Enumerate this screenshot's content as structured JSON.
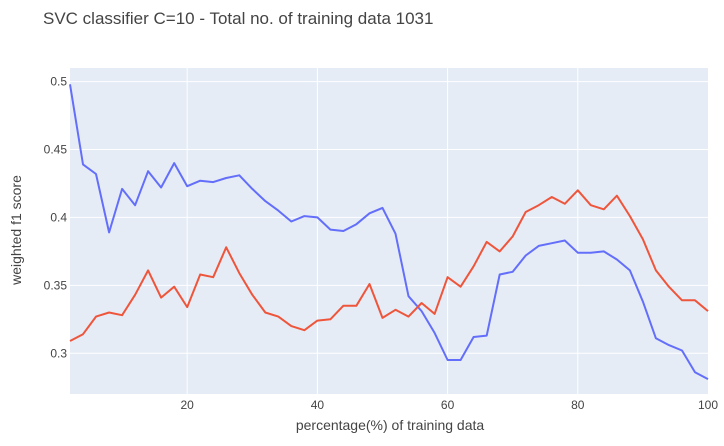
{
  "chart_data": {
    "type": "line",
    "title": "SVC classifier C=10 - Total no. of training data 1031",
    "xlabel": "percentage(%) of training data",
    "ylabel": "weighted f1 score",
    "xlim": [
      2,
      100
    ],
    "ylim": [
      0.27,
      0.51
    ],
    "grid": true,
    "x_ticks": [
      20,
      40,
      60,
      80,
      100
    ],
    "y_ticks": [
      0.3,
      0.35,
      0.4,
      0.45,
      0.5
    ],
    "x": [
      2,
      4,
      6,
      8,
      10,
      12,
      14,
      16,
      18,
      20,
      22,
      24,
      26,
      28,
      30,
      32,
      34,
      36,
      38,
      40,
      42,
      44,
      46,
      48,
      50,
      52,
      54,
      56,
      58,
      60,
      62,
      64,
      66,
      68,
      70,
      72,
      74,
      76,
      78,
      80,
      82,
      84,
      86,
      88,
      90,
      92,
      94,
      96,
      98,
      100
    ],
    "series": [
      {
        "color": "#636efa",
        "values": [
          0.498,
          0.439,
          0.432,
          0.389,
          0.421,
          0.409,
          0.434,
          0.422,
          0.44,
          0.423,
          0.427,
          0.426,
          0.429,
          0.431,
          0.421,
          0.412,
          0.405,
          0.397,
          0.401,
          0.4,
          0.391,
          0.39,
          0.395,
          0.403,
          0.407,
          0.388,
          0.342,
          0.331,
          0.315,
          0.295,
          0.295,
          0.312,
          0.313,
          0.358,
          0.36,
          0.372,
          0.379,
          0.381,
          0.383,
          0.374,
          0.374,
          0.375,
          0.369,
          0.361,
          0.338,
          0.311,
          0.306,
          0.302,
          0.286,
          0.281
        ]
      },
      {
        "color": "#ef553b",
        "values": [
          0.309,
          0.314,
          0.327,
          0.33,
          0.328,
          0.343,
          0.361,
          0.341,
          0.349,
          0.334,
          0.358,
          0.356,
          0.378,
          0.359,
          0.343,
          0.33,
          0.327,
          0.32,
          0.317,
          0.324,
          0.325,
          0.335,
          0.335,
          0.351,
          0.326,
          0.332,
          0.327,
          0.337,
          0.329,
          0.356,
          0.349,
          0.364,
          0.382,
          0.375,
          0.386,
          0.404,
          0.409,
          0.415,
          0.41,
          0.42,
          0.409,
          0.406,
          0.416,
          0.401,
          0.384,
          0.361,
          0.349,
          0.339,
          0.339,
          0.331
        ]
      }
    ]
  }
}
